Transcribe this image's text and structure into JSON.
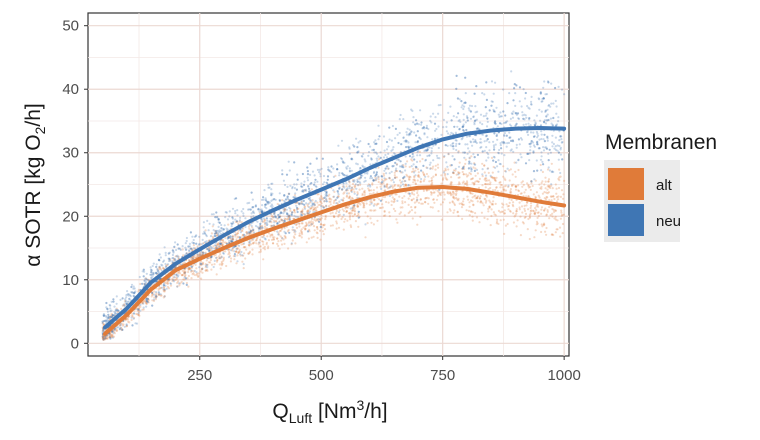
{
  "chart_data": {
    "type": "scatter",
    "title": "",
    "xlabel": {
      "main": "Q",
      "sub": "Luft",
      "unit_pre": " [Nm",
      "unit_sup": "3",
      "unit_post": "/h]"
    },
    "ylabel": {
      "pre": "α SOTR [kg O",
      "sub": "2",
      "post": "/h]"
    },
    "xlim": [
      20,
      1010
    ],
    "ylim": [
      -2,
      52
    ],
    "x_ticks": [
      250,
      500,
      750,
      1000
    ],
    "y_ticks": [
      0,
      10,
      20,
      30,
      40,
      50
    ],
    "x_tick_labels": [
      "250",
      "500",
      "750",
      "1000"
    ],
    "y_tick_labels": [
      "0",
      "10",
      "20",
      "30",
      "40",
      "50"
    ],
    "grid": true,
    "legend": {
      "title": "Membranen",
      "position": "right"
    },
    "series": [
      {
        "name": "alt",
        "color": "#e07b39",
        "smooth": {
          "x": [
            55,
            100,
            150,
            200,
            250,
            300,
            350,
            400,
            450,
            500,
            550,
            600,
            650,
            700,
            750,
            800,
            850,
            900,
            950,
            1000
          ],
          "y": [
            1.5,
            4.5,
            8.5,
            11.5,
            13.3,
            15.0,
            16.6,
            18.0,
            19.3,
            20.6,
            21.9,
            23.0,
            23.9,
            24.5,
            24.6,
            24.3,
            23.7,
            23.0,
            22.3,
            21.7
          ]
        },
        "scatter_spread": 2.5,
        "scatter_x_range": [
          50,
          1000
        ]
      },
      {
        "name": "neu",
        "color": "#3f76b4",
        "smooth": {
          "x": [
            55,
            100,
            150,
            200,
            250,
            300,
            350,
            400,
            450,
            500,
            550,
            600,
            650,
            700,
            750,
            800,
            850,
            900,
            950,
            1000
          ],
          "y": [
            2.5,
            5.5,
            9.6,
            12.5,
            14.8,
            17.0,
            19.1,
            20.9,
            22.6,
            24.2,
            25.8,
            27.6,
            29.2,
            30.8,
            32.1,
            33.0,
            33.5,
            33.8,
            33.9,
            33.8
          ]
        },
        "scatter_spread": 3.5,
        "scatter_x_range": [
          50,
          1000
        ]
      }
    ]
  }
}
